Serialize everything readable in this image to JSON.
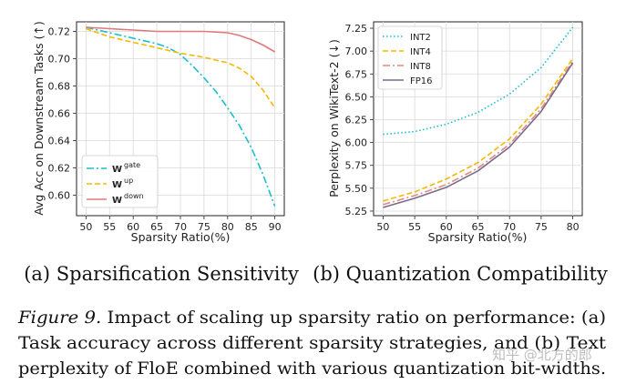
{
  "chart_data": [
    {
      "type": "line",
      "subcaption": "(a)  Sparsification Sensitivity",
      "xlabel": "Sparsity Ratio(%)",
      "ylabel": "Avg Acc on Downstream Tasks (↑)",
      "xlim": [
        48,
        92
      ],
      "ylim": [
        0.585,
        0.727
      ],
      "xticks": [
        50,
        55,
        60,
        65,
        70,
        75,
        80,
        85,
        90
      ],
      "yticks": [
        0.6,
        0.62,
        0.64,
        0.66,
        0.68,
        0.7,
        0.72
      ],
      "ytick_labels": [
        "0.60",
        "0.62",
        "0.64",
        "0.66",
        "0.68",
        "0.70",
        "0.72"
      ],
      "grid": true,
      "legend_position": "lower-left",
      "series": [
        {
          "name": "W",
          "sup": "gate",
          "color": "#17becf",
          "dash": "8,3,2,3",
          "x": [
            50,
            55,
            60,
            65,
            67.5,
            70,
            72.5,
            75,
            77.5,
            80,
            82.5,
            85,
            87.5,
            90
          ],
          "y": [
            0.723,
            0.719,
            0.715,
            0.711,
            0.708,
            0.703,
            0.695,
            0.686,
            0.676,
            0.664,
            0.651,
            0.635,
            0.615,
            0.592
          ]
        },
        {
          "name": "W",
          "sup": "up",
          "color": "#f5b800",
          "dash": "6,3",
          "x": [
            50,
            55,
            60,
            65,
            70,
            75,
            80,
            82.5,
            85,
            87.5,
            90
          ],
          "y": [
            0.722,
            0.716,
            0.712,
            0.708,
            0.704,
            0.701,
            0.697,
            0.693,
            0.687,
            0.677,
            0.664
          ]
        },
        {
          "name": "W",
          "sup": "down",
          "color": "#e07a7a",
          "dash": "",
          "x": [
            50,
            55,
            60,
            65,
            70,
            75,
            80,
            82.5,
            85,
            87.5,
            90
          ],
          "y": [
            0.723,
            0.722,
            0.721,
            0.72,
            0.72,
            0.72,
            0.719,
            0.717,
            0.714,
            0.71,
            0.705
          ]
        }
      ]
    },
    {
      "type": "line",
      "subcaption": "(b)  Quantization Compatibility",
      "xlabel": "Sparsity Ratio(%)",
      "ylabel": "Perplexity on WikiText-2 (↓)",
      "xlim": [
        48.5,
        81.5
      ],
      "ylim": [
        5.2,
        7.32
      ],
      "xticks": [
        50,
        55,
        60,
        65,
        70,
        75,
        80
      ],
      "yticks": [
        5.25,
        5.5,
        5.75,
        6.0,
        6.25,
        6.5,
        6.75,
        7.0,
        7.25
      ],
      "ytick_labels": [
        "5.25",
        "5.50",
        "5.75",
        "6.00",
        "6.25",
        "6.50",
        "6.75",
        "7.00",
        "7.25"
      ],
      "grid": true,
      "legend_position": "top-left",
      "series": [
        {
          "name": "INT2",
          "color": "#17becf",
          "dash": "1.5,2.5",
          "x": [
            50,
            55,
            60,
            65,
            70,
            75,
            80
          ],
          "y": [
            6.09,
            6.12,
            6.2,
            6.33,
            6.53,
            6.82,
            7.26
          ]
        },
        {
          "name": "INT4",
          "color": "#f5b800",
          "dash": "6,3",
          "x": [
            50,
            55,
            60,
            65,
            70,
            75,
            80
          ],
          "y": [
            5.36,
            5.46,
            5.6,
            5.78,
            6.04,
            6.42,
            6.92
          ]
        },
        {
          "name": "INT8",
          "color": "#e08a8a",
          "dash": "8,3,2,3",
          "x": [
            50,
            55,
            60,
            65,
            70,
            75,
            80
          ],
          "y": [
            5.32,
            5.42,
            5.54,
            5.72,
            5.98,
            6.37,
            6.89
          ]
        },
        {
          "name": "FP16",
          "color": "#7a6a8a",
          "dash": "",
          "x": [
            50,
            55,
            60,
            65,
            70,
            75,
            80
          ],
          "y": [
            5.29,
            5.39,
            5.51,
            5.69,
            5.95,
            6.34,
            6.87
          ]
        }
      ]
    }
  ],
  "caption": {
    "label": "Figure 9.",
    "lines": [
      " Impact of scaling up sparsity ratio on performance: (a)",
      "Task accuracy across different sparsity strategies, and (b) Text",
      "perplexity of FloE combined with various quantization bit-widths."
    ]
  },
  "watermark": "知乎 @北方的郎"
}
